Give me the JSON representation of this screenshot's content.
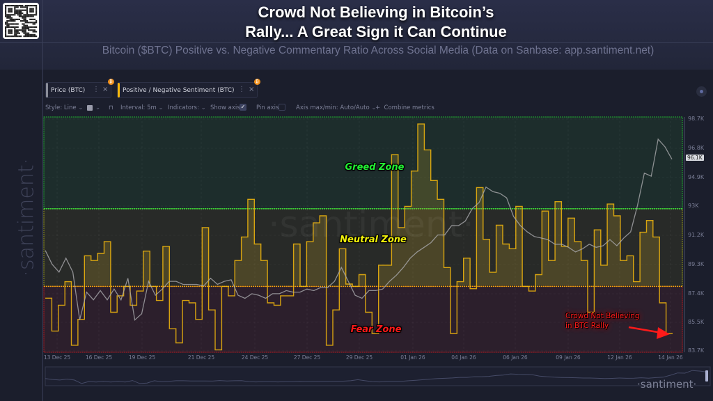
{
  "header": {
    "title_line1": "Crowd Not Believing in Bitcoin’s",
    "title_line2": "Rally... A Great Sign it Can Continue",
    "subtitle": "Bitcoin ($BTC) Positive vs. Negative Commentary Ratio Across Social Media (Data on Sanbase: app.santiment.net)"
  },
  "metric_tabs": [
    {
      "label": "Price (BTC)",
      "color": "#8a8d99",
      "badge": "₿"
    },
    {
      "label": "Positive / Negative Sentiment (BTC)",
      "color": "#f5b80c",
      "badge": "₿"
    }
  ],
  "toolbar": {
    "style": "Style: Line",
    "interval": "Interval: 5m",
    "indicators": "Indicators:",
    "show_axis": "Show axis",
    "show_axis_checked": true,
    "pin_axis": "Pin axis",
    "pin_axis_checked": false,
    "axis_maxmin": "Axis max/min: Auto/Auto",
    "combine": "Combine metrics"
  },
  "watermark": "·santiment·",
  "chart_data": {
    "type": "line",
    "x_range": [
      "13 Dec 25",
      "14 Jan 26"
    ],
    "x_ticks": [
      "13 Dec 25",
      "16 Dec 25",
      "19 Dec 25",
      "21 Dec 25",
      "24 Dec 25",
      "27 Dec 25",
      "29 Dec 25",
      "01 Jan 26",
      "04 Jan 26",
      "06 Jan 26",
      "09 Jan 26",
      "12 Jan 26",
      "14 Jan 26"
    ],
    "y_ticks": [
      "98.7K",
      "96.8K",
      "94.9K",
      "93K",
      "91.2K",
      "89.3K",
      "87.4K",
      "85.5K",
      "83.7K"
    ],
    "ylim_price_k": [
      83.7,
      98.7
    ],
    "last_price_label": "96.1K",
    "grid": true,
    "zones": [
      {
        "label": "Greed Zone",
        "color": "#22ee33"
      },
      {
        "label": "Neutral Zone",
        "color": "#f2f20a"
      },
      {
        "label": "Fear Zone",
        "color": "#ff1a1a"
      }
    ],
    "zone_thresholds_sentiment_relative": {
      "neutral_min": 28,
      "greed_min": 61
    },
    "annotation": {
      "line1": "Crowd Not Believing",
      "line2": "in BTC Rally",
      "color": "#ff1a1a"
    },
    "series": [
      {
        "name": "Price (BTC)",
        "color": "#a9a9ad",
        "unit": "K USD",
        "values": [
          90.2,
          89.3,
          88.8,
          89.7,
          88.8,
          85.7,
          87.5,
          87.0,
          87.6,
          87.0,
          87.7,
          87.0,
          88.4,
          85.7,
          86.1,
          88.2,
          87.3,
          87.7,
          88.2,
          88.2,
          88.0,
          88.0,
          88.0,
          87.9,
          88.4,
          88.0,
          88.2,
          88.3,
          87.3,
          87.1,
          87.4,
          87.3,
          87.1,
          87.4,
          87.4,
          87.6,
          87.5,
          87.5,
          87.7,
          87.6,
          87.8,
          87.8,
          88.2,
          89.1,
          88.2,
          87.3,
          87.1,
          87.6,
          87.6,
          87.7,
          88.2,
          88.6,
          89.1,
          89.7,
          90.1,
          90.4,
          90.7,
          91.2,
          91.2,
          91.8,
          91.8,
          92.1,
          92.9,
          93.3,
          94.3,
          94.0,
          93.9,
          93.6,
          92.4,
          91.8,
          91.4,
          91.1,
          91.0,
          90.9,
          90.6,
          90.6,
          90.4,
          90.1,
          90.3,
          90.6,
          90.4,
          90.5,
          90.9,
          90.5,
          91.0,
          91.4,
          93.1,
          95.2,
          95.0,
          97.4,
          96.9,
          96.1
        ]
      },
      {
        "name": "Positive / Negative Sentiment (BTC)",
        "color": "#f5b80c",
        "style": "step",
        "scale": "relative 0-100 (no axis shown)",
        "values": [
          23,
          9,
          20,
          30,
          3,
          14,
          41,
          39,
          42,
          47,
          17,
          24,
          28,
          20,
          26,
          43,
          28,
          22,
          45,
          10,
          4,
          22,
          21,
          14,
          53,
          18,
          1,
          28,
          24,
          39,
          49,
          65,
          46,
          39,
          21,
          20,
          24,
          24,
          46,
          28,
          47,
          55,
          58,
          3,
          18,
          44,
          29,
          28,
          33,
          17,
          8,
          37,
          37,
          84,
          53,
          62,
          77,
          97,
          86,
          73,
          65,
          36,
          8,
          30,
          40,
          27,
          70,
          48,
          34,
          54,
          46,
          44,
          62,
          28,
          26,
          33,
          60,
          39,
          64,
          45,
          57,
          47,
          39,
          17,
          52,
          37,
          63,
          58,
          39,
          41,
          30,
          51,
          56,
          49,
          21,
          8
        ]
      }
    ]
  }
}
